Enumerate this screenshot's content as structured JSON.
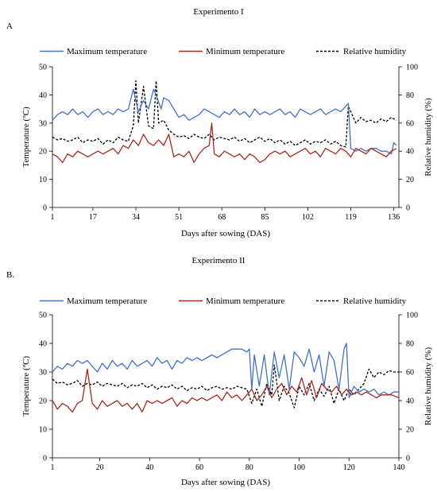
{
  "chart_data": [
    {
      "type": "line",
      "panel_label": "A",
      "title": "Experimento I",
      "xlabel": "Days after sowing (DAS)",
      "ylabel": "Temperature (ºC)",
      "y2label": "Relative humidity (%)",
      "x_ticks": [
        1,
        17,
        34,
        51,
        68,
        85,
        102,
        119,
        136
      ],
      "xlim": [
        1,
        138
      ],
      "ylim": [
        0,
        50
      ],
      "y2lim": [
        0,
        100
      ],
      "y_ticks": [
        0,
        10,
        20,
        30,
        40,
        50
      ],
      "y2_ticks": [
        0,
        20,
        40,
        60,
        80,
        100
      ],
      "legend_position": "top",
      "series": [
        {
          "name": "Maximum temperature",
          "axis": "left",
          "color": "#4472c4",
          "style": "solid",
          "x": [
            1,
            3,
            5,
            7,
            9,
            11,
            13,
            15,
            17,
            19,
            21,
            23,
            25,
            27,
            29,
            31,
            33,
            35,
            37,
            39,
            41,
            42,
            44,
            45,
            47,
            49,
            51,
            53,
            55,
            57,
            59,
            61,
            63,
            65,
            67,
            69,
            71,
            73,
            75,
            77,
            79,
            81,
            83,
            85,
            87,
            89,
            91,
            93,
            95,
            97,
            99,
            101,
            103,
            105,
            107,
            109,
            111,
            113,
            115,
            117,
            118,
            119,
            121,
            123,
            125,
            127,
            129,
            131,
            133,
            135,
            136,
            137
          ],
          "y": [
            31,
            33,
            34,
            33,
            35,
            33,
            34,
            32,
            34,
            35,
            33,
            34,
            33,
            35,
            34,
            35,
            42,
            34,
            38,
            35,
            42,
            40,
            35,
            39,
            38,
            35,
            32,
            33,
            31,
            32,
            33,
            35,
            34,
            33,
            32,
            34,
            33,
            35,
            33,
            34,
            32,
            35,
            33,
            34,
            33,
            34,
            35,
            33,
            34,
            32,
            35,
            34,
            33,
            34,
            35,
            33,
            34,
            35,
            34,
            36,
            37,
            21,
            20,
            21,
            20,
            21,
            21,
            20,
            20,
            19,
            23,
            22
          ]
        },
        {
          "name": "Minimum temperature",
          "axis": "left",
          "color": "#a52a1f",
          "style": "solid",
          "x": [
            1,
            3,
            5,
            7,
            9,
            11,
            13,
            15,
            17,
            19,
            21,
            23,
            25,
            27,
            29,
            31,
            33,
            35,
            37,
            39,
            41,
            43,
            45,
            47,
            49,
            51,
            53,
            55,
            57,
            59,
            61,
            63,
            64,
            65,
            67,
            69,
            71,
            73,
            75,
            77,
            79,
            81,
            83,
            85,
            87,
            89,
            91,
            93,
            95,
            97,
            99,
            101,
            103,
            105,
            107,
            109,
            111,
            113,
            115,
            117,
            119,
            121,
            123,
            125,
            127,
            129,
            131,
            133,
            135,
            137
          ],
          "y": [
            19,
            18,
            16,
            19,
            18,
            20,
            19,
            18,
            19,
            20,
            19,
            20,
            21,
            19,
            22,
            21,
            24,
            22,
            26,
            23,
            22,
            24,
            22,
            26,
            18,
            19,
            18,
            20,
            16,
            19,
            21,
            22,
            30,
            19,
            18,
            20,
            19,
            18,
            19,
            17,
            19,
            18,
            16,
            17,
            19,
            20,
            19,
            20,
            18,
            19,
            20,
            21,
            19,
            20,
            18,
            21,
            20,
            19,
            21,
            20,
            18,
            21,
            20,
            19,
            21,
            20,
            19,
            18,
            20,
            21
          ]
        },
        {
          "name": "Relative humidity",
          "axis": "right",
          "color": "#000000",
          "style": "dashed",
          "x": [
            1,
            3,
            5,
            7,
            9,
            11,
            13,
            15,
            17,
            19,
            21,
            23,
            25,
            27,
            29,
            31,
            33,
            34,
            35,
            37,
            39,
            41,
            42,
            43,
            45,
            47,
            49,
            51,
            53,
            55,
            57,
            59,
            61,
            63,
            65,
            67,
            69,
            71,
            73,
            75,
            77,
            79,
            81,
            83,
            85,
            87,
            89,
            91,
            93,
            95,
            97,
            99,
            101,
            103,
            105,
            107,
            109,
            111,
            113,
            115,
            117,
            118,
            119,
            121,
            123,
            125,
            127,
            129,
            131,
            133,
            135,
            137
          ],
          "y": [
            50,
            48,
            49,
            47,
            48,
            50,
            46,
            48,
            47,
            49,
            45,
            48,
            46,
            50,
            48,
            47,
            58,
            90,
            60,
            86,
            58,
            56,
            90,
            60,
            62,
            55,
            52,
            50,
            51,
            49,
            52,
            50,
            49,
            52,
            48,
            50,
            49,
            48,
            50,
            47,
            49,
            46,
            48,
            50,
            47,
            49,
            46,
            48,
            45,
            47,
            44,
            46,
            48,
            45,
            47,
            46,
            48,
            45,
            47,
            44,
            43,
            72,
            68,
            60,
            64,
            61,
            62,
            60,
            63,
            61,
            64,
            62
          ]
        }
      ]
    },
    {
      "type": "line",
      "panel_label": "B.",
      "title": "Experimento II",
      "xlabel": "Days after sowing (DAS)",
      "ylabel": "Temperature (ºC)",
      "y2label": "Relative humidity (%)",
      "x_ticks": [
        1,
        20,
        40,
        60,
        80,
        100,
        120,
        140
      ],
      "xlim": [
        1,
        140
      ],
      "ylim": [
        0,
        50
      ],
      "y2lim": [
        0,
        100
      ],
      "y_ticks": [
        0,
        10,
        20,
        30,
        40,
        50
      ],
      "y2_ticks": [
        0,
        20,
        40,
        60,
        80,
        100
      ],
      "legend_position": "top",
      "series": [
        {
          "name": "Maximum temperature",
          "axis": "left",
          "color": "#4472c4",
          "style": "solid",
          "x": [
            1,
            3,
            5,
            7,
            9,
            11,
            13,
            15,
            17,
            19,
            21,
            23,
            25,
            27,
            29,
            31,
            33,
            35,
            37,
            39,
            41,
            43,
            45,
            47,
            49,
            51,
            53,
            55,
            57,
            59,
            61,
            63,
            65,
            67,
            69,
            71,
            73,
            75,
            77,
            79,
            80,
            81,
            82,
            84,
            86,
            88,
            90,
            92,
            94,
            96,
            98,
            100,
            102,
            104,
            106,
            108,
            110,
            112,
            114,
            116,
            118,
            119,
            120,
            122,
            124,
            126,
            128,
            130,
            132,
            134,
            136,
            138,
            140
          ],
          "y": [
            30,
            32,
            31,
            33,
            32,
            34,
            33,
            34,
            32,
            30,
            33,
            31,
            34,
            32,
            33,
            31,
            34,
            32,
            33,
            34,
            32,
            35,
            33,
            34,
            31,
            34,
            33,
            35,
            34,
            35,
            34,
            35,
            36,
            35,
            36,
            37,
            38,
            38,
            38,
            37,
            38,
            24,
            36,
            25,
            36,
            22,
            37,
            28,
            36,
            24,
            37,
            35,
            32,
            38,
            30,
            36,
            25,
            37,
            34,
            24,
            38,
            40,
            21,
            25,
            23,
            24,
            23,
            24,
            22,
            23,
            22,
            23,
            23
          ]
        },
        {
          "name": "Minimum temperature",
          "axis": "left",
          "color": "#a52a1f",
          "style": "solid",
          "x": [
            1,
            3,
            5,
            7,
            9,
            11,
            13,
            15,
            17,
            19,
            21,
            23,
            25,
            27,
            29,
            31,
            33,
            35,
            37,
            39,
            41,
            43,
            45,
            47,
            49,
            51,
            53,
            55,
            57,
            59,
            61,
            63,
            65,
            67,
            69,
            71,
            73,
            75,
            77,
            79,
            81,
            83,
            85,
            87,
            89,
            91,
            93,
            95,
            97,
            99,
            101,
            103,
            105,
            107,
            109,
            111,
            113,
            115,
            117,
            119,
            121,
            123,
            125,
            127,
            129,
            131,
            133,
            135,
            137,
            140
          ],
          "y": [
            20,
            17,
            19,
            18,
            16,
            19,
            20,
            31,
            19,
            17,
            20,
            18,
            19,
            20,
            18,
            19,
            17,
            19,
            16,
            20,
            19,
            20,
            19,
            20,
            21,
            18,
            20,
            19,
            21,
            20,
            21,
            20,
            21,
            22,
            20,
            23,
            21,
            22,
            20,
            22,
            24,
            20,
            22,
            25,
            21,
            24,
            26,
            22,
            25,
            23,
            28,
            22,
            27,
            21,
            26,
            24,
            23,
            25,
            22,
            24,
            22,
            23,
            22,
            23,
            22,
            21,
            22,
            22,
            22,
            21
          ]
        },
        {
          "name": "Relative humidity",
          "axis": "right",
          "color": "#000000",
          "style": "dashed",
          "x": [
            1,
            3,
            5,
            7,
            9,
            11,
            13,
            15,
            17,
            19,
            21,
            23,
            25,
            27,
            29,
            31,
            33,
            35,
            37,
            39,
            41,
            43,
            45,
            47,
            49,
            51,
            53,
            55,
            57,
            59,
            61,
            63,
            65,
            67,
            69,
            71,
            73,
            75,
            77,
            79,
            81,
            83,
            85,
            87,
            89,
            90,
            92,
            94,
            96,
            98,
            100,
            102,
            104,
            106,
            108,
            110,
            112,
            114,
            116,
            118,
            120,
            122,
            124,
            126,
            128,
            130,
            132,
            134,
            136,
            138,
            140
          ],
          "y": [
            55,
            52,
            53,
            51,
            52,
            54,
            50,
            52,
            51,
            53,
            50,
            52,
            51,
            50,
            52,
            49,
            51,
            50,
            52,
            49,
            51,
            48,
            50,
            49,
            51,
            48,
            50,
            47,
            49,
            48,
            50,
            47,
            49,
            50,
            48,
            49,
            48,
            50,
            49,
            48,
            38,
            48,
            36,
            52,
            44,
            65,
            40,
            50,
            45,
            35,
            50,
            44,
            52,
            40,
            48,
            43,
            50,
            38,
            48,
            40,
            48,
            44,
            48,
            52,
            62,
            56,
            60,
            58,
            61,
            60,
            60
          ]
        }
      ]
    }
  ]
}
